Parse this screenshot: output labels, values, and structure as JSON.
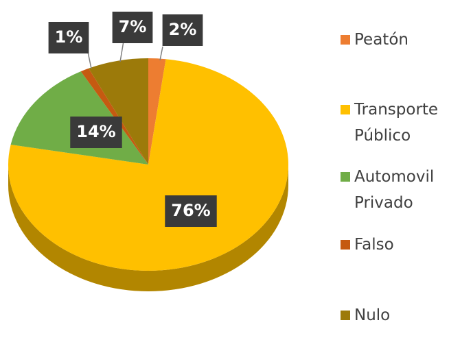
{
  "chart_data": {
    "type": "pie",
    "categories": [
      "Peatón",
      "Transporte Público",
      "Automovil Privado",
      "Falso",
      "Nulo"
    ],
    "values": [
      2,
      76,
      14,
      1,
      7
    ],
    "value_labels": [
      "2%",
      "76%",
      "14%",
      "1%",
      "7%"
    ],
    "colors": [
      "#ed7d31",
      "#ffc000",
      "#70ad47",
      "#c55a11",
      "#9c7a0a"
    ],
    "legend": "right"
  }
}
